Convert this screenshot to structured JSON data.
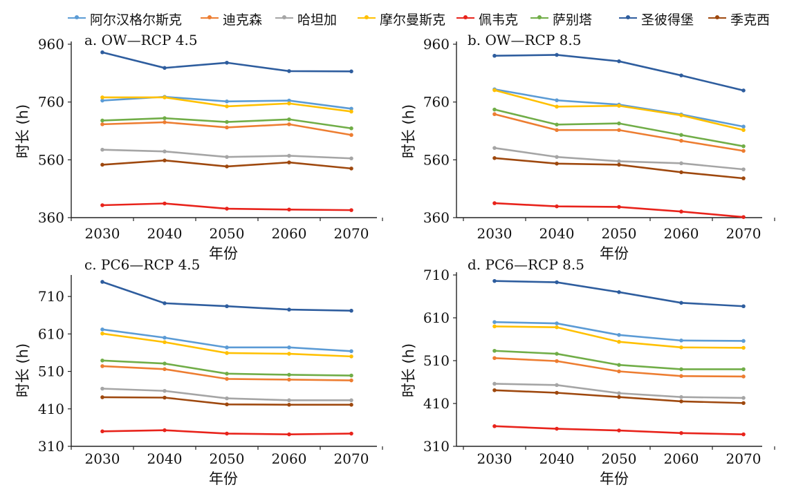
{
  "legend": [
    {
      "name": "阿尔汉格尔斯克",
      "color": "#5b9bd5"
    },
    {
      "name": "迪克森",
      "color": "#ed7d31"
    },
    {
      "name": "哈坦加",
      "color": "#a5a5a5"
    },
    {
      "name": "摩尔曼斯克",
      "color": "#ffc000"
    },
    {
      "name": "佩韦克",
      "color": "#e8231b"
    },
    {
      "name": "萨别塔",
      "color": "#70ad47"
    },
    {
      "name": "圣彼得堡",
      "color": "#2e5d9e"
    },
    {
      "name": "季克西",
      "color": "#9e480e"
    }
  ],
  "chart_data": [
    {
      "type": "line",
      "title": "a. OW—RCP 4.5",
      "xlabel": "年份",
      "ylabel": "时长 (h)",
      "x": [
        2030,
        2040,
        2050,
        2060,
        2070
      ],
      "ylim": [
        360,
        960
      ],
      "yticks": [
        360,
        560,
        760,
        960
      ],
      "series": [
        {
          "name": "阿尔汉格尔斯克",
          "values": [
            765,
            778,
            762,
            765,
            737
          ]
        },
        {
          "name": "迪克森",
          "values": [
            683,
            690,
            672,
            683,
            646
          ]
        },
        {
          "name": "哈坦加",
          "values": [
            595,
            589,
            570,
            574,
            565
          ]
        },
        {
          "name": "摩尔曼斯克",
          "values": [
            776,
            776,
            745,
            755,
            727
          ]
        },
        {
          "name": "佩韦克",
          "values": [
            403,
            409,
            391,
            388,
            386
          ]
        },
        {
          "name": "萨别塔",
          "values": [
            696,
            704,
            691,
            700,
            669
          ]
        },
        {
          "name": "圣彼得堡",
          "values": [
            932,
            878,
            896,
            867,
            866
          ]
        },
        {
          "name": "季克西",
          "values": [
            543,
            558,
            537,
            551,
            530
          ]
        }
      ]
    },
    {
      "type": "line",
      "title": "b. OW—RCP 8.5",
      "xlabel": "年份",
      "ylabel": "时长 (h)",
      "x": [
        2030,
        2040,
        2050,
        2060,
        2070
      ],
      "ylim": [
        360,
        960
      ],
      "yticks": [
        360,
        560,
        760,
        960
      ],
      "series": [
        {
          "name": "阿尔汉格尔斯克",
          "values": [
            804,
            766,
            751,
            717,
            675
          ]
        },
        {
          "name": "迪克森",
          "values": [
            718,
            663,
            663,
            626,
            591
          ]
        },
        {
          "name": "哈坦加",
          "values": [
            601,
            570,
            555,
            548,
            527
          ]
        },
        {
          "name": "摩尔曼斯克",
          "values": [
            801,
            744,
            747,
            714,
            663
          ]
        },
        {
          "name": "佩韦克",
          "values": [
            410,
            399,
            397,
            381,
            362
          ]
        },
        {
          "name": "萨别塔",
          "values": [
            734,
            682,
            686,
            646,
            607
          ]
        },
        {
          "name": "圣彼得堡",
          "values": [
            920,
            923,
            901,
            852,
            800
          ]
        },
        {
          "name": "季克西",
          "values": [
            566,
            547,
            543,
            517,
            496
          ]
        }
      ]
    },
    {
      "type": "line",
      "title": "c. PC6—RCP 4.5",
      "xlabel": "年份",
      "ylabel": "时长 (h)",
      "x": [
        2030,
        2040,
        2050,
        2060,
        2070
      ],
      "ylim": [
        310,
        760
      ],
      "yticks": [
        310,
        410,
        510,
        610,
        710
      ],
      "series": [
        {
          "name": "阿尔汉格尔斯克",
          "values": [
            622,
            600,
            574,
            574,
            564
          ]
        },
        {
          "name": "迪克森",
          "values": [
            524,
            516,
            490,
            488,
            486
          ]
        },
        {
          "name": "哈坦加",
          "values": [
            464,
            458,
            438,
            433,
            433
          ]
        },
        {
          "name": "摩尔曼斯克",
          "values": [
            611,
            588,
            559,
            557,
            550
          ]
        },
        {
          "name": "佩韦克",
          "values": [
            350,
            353,
            344,
            342,
            344
          ]
        },
        {
          "name": "萨别塔",
          "values": [
            539,
            531,
            504,
            501,
            499
          ]
        },
        {
          "name": "圣彼得堡",
          "values": [
            749,
            692,
            684,
            675,
            672
          ]
        },
        {
          "name": "季克西",
          "values": [
            441,
            440,
            422,
            421,
            421
          ]
        }
      ]
    },
    {
      "type": "line",
      "title": "d. PC6—RCP 8.5",
      "xlabel": "年份",
      "ylabel": "时长 (h)",
      "x": [
        2030,
        2040,
        2050,
        2060,
        2070
      ],
      "ylim": [
        310,
        710
      ],
      "yticks": [
        310,
        410,
        510,
        610,
        710
      ],
      "series": [
        {
          "name": "阿尔汉格尔斯克",
          "values": [
            600,
            597,
            570,
            557,
            556
          ]
        },
        {
          "name": "迪克森",
          "values": [
            516,
            509,
            485,
            474,
            473
          ]
        },
        {
          "name": "哈坦加",
          "values": [
            456,
            453,
            434,
            425,
            423
          ]
        },
        {
          "name": "摩尔曼斯克",
          "values": [
            590,
            588,
            554,
            541,
            540
          ]
        },
        {
          "name": "佩韦克",
          "values": [
            357,
            351,
            347,
            341,
            338
          ]
        },
        {
          "name": "萨别塔",
          "values": [
            533,
            526,
            500,
            490,
            490
          ]
        },
        {
          "name": "圣彼得堡",
          "values": [
            696,
            693,
            670,
            645,
            637
          ]
        },
        {
          "name": "季克西",
          "values": [
            441,
            435,
            425,
            415,
            411
          ]
        }
      ]
    }
  ]
}
